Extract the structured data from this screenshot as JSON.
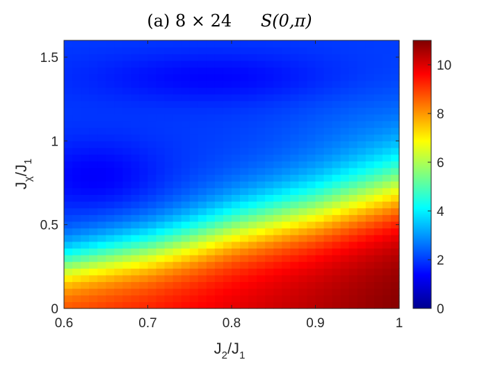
{
  "chart_data": {
    "type": "heatmap",
    "title": {
      "prefix": "(a) 8 × 24",
      "quantity": "S(0,π)"
    },
    "xlabel": {
      "main": "J",
      "sub1": "2",
      "slash": "/J",
      "sub2": "1"
    },
    "ylabel": {
      "main": "J",
      "sub1": "χ",
      "slash": "/J",
      "sub2": "1"
    },
    "xlim": [
      0.6,
      1.0
    ],
    "ylim": [
      0,
      1.6
    ],
    "x_ticks": [
      "0.6",
      "0.7",
      "0.8",
      "0.9",
      "1"
    ],
    "y_ticks": [
      "0",
      "0.5",
      "1",
      "1.5"
    ],
    "colorbar": {
      "range": [
        0,
        11
      ],
      "colormap": "jet",
      "ticks": [
        "0",
        "2",
        "4",
        "6",
        "8",
        "10"
      ]
    },
    "grid": {
      "x_step": 0.01,
      "y_step": 0.04
    },
    "surface_description": {
      "low_region_value": 2,
      "high_region_value": 11,
      "boundary_y_at_x": [
        {
          "x": 0.6,
          "y": 0.26
        },
        {
          "x": 0.7,
          "y": 0.34
        },
        {
          "x": 0.75,
          "y": 0.4
        },
        {
          "x": 0.8,
          "y": 0.47
        },
        {
          "x": 0.9,
          "y": 0.58
        },
        {
          "x": 1.0,
          "y": 0.72
        }
      ]
    }
  }
}
